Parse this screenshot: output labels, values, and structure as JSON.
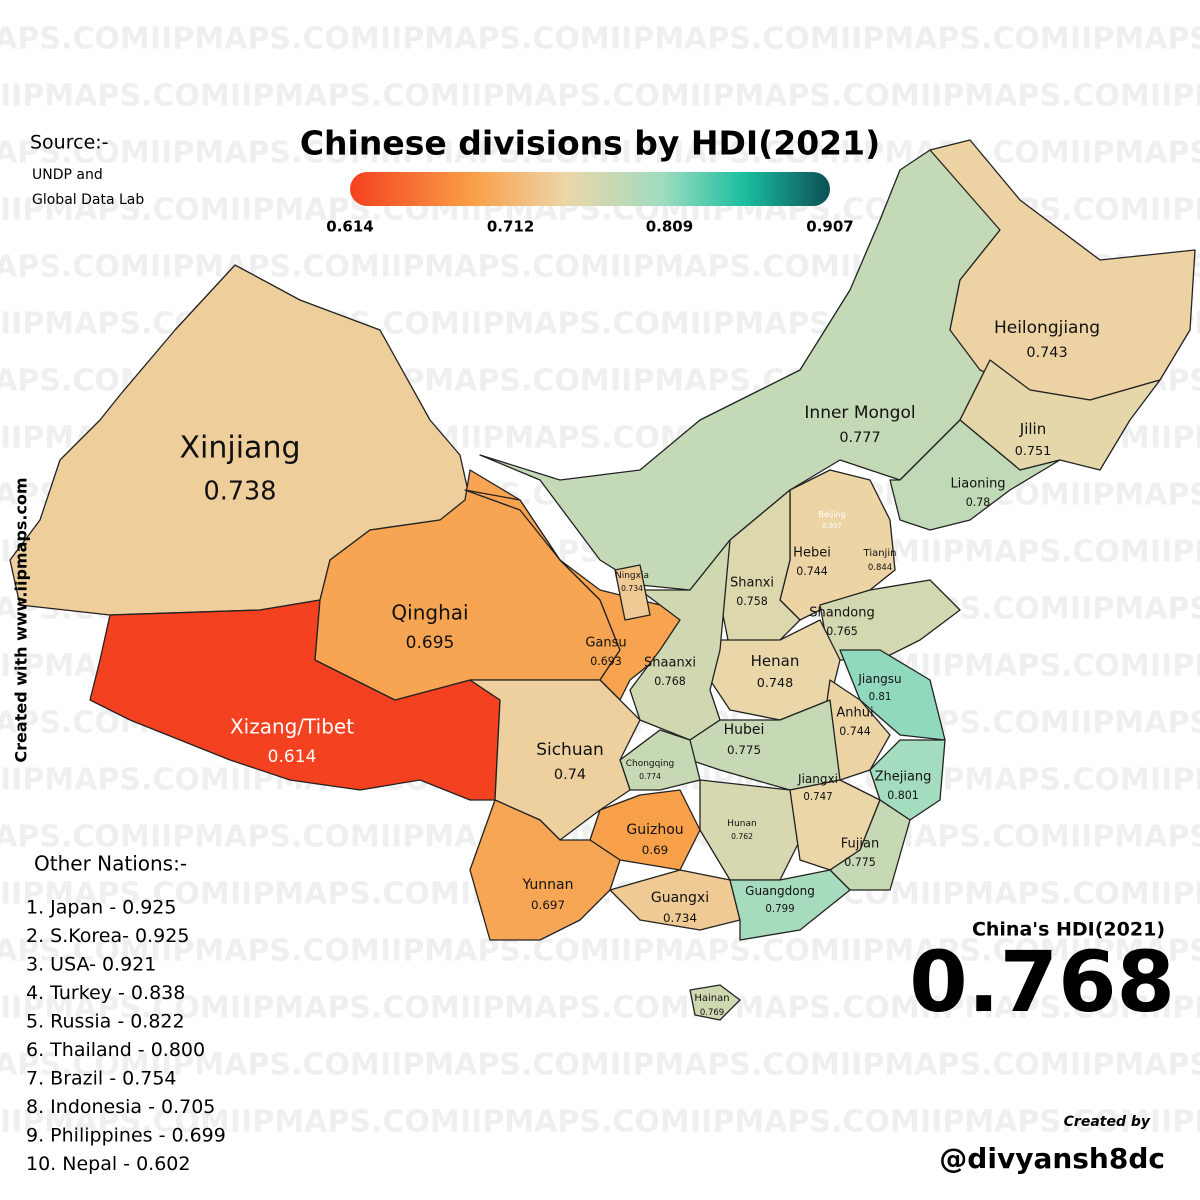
{
  "title": "Chinese divisions by HDI(2021)",
  "source": {
    "label": "Source:-",
    "lines": [
      "UNDP and",
      "Global Data Lab"
    ]
  },
  "watermark": "IIPMAPS.COM",
  "side_credit": "Created with www.iipmaps.com",
  "legend": {
    "ticks": [
      0.614,
      0.712,
      0.809,
      0.907
    ]
  },
  "regions": [
    {
      "name": "Xinjiang",
      "value": 0.738
    },
    {
      "name": "Xizang/Tibet",
      "value": 0.614
    },
    {
      "name": "Qinghai",
      "value": 0.695
    },
    {
      "name": "Gansu",
      "value": 0.693
    },
    {
      "name": "Inner Mongol",
      "value": 0.777
    },
    {
      "name": "Heilongjiang",
      "value": 0.743
    },
    {
      "name": "Jilin",
      "value": 0.751
    },
    {
      "name": "Liaoning",
      "value": 0.78
    },
    {
      "name": "Beijing",
      "value": 0.907
    },
    {
      "name": "Tianjin",
      "value": 0.844
    },
    {
      "name": "Hebei",
      "value": 0.744
    },
    {
      "name": "Shanxi",
      "value": 0.758
    },
    {
      "name": "Shandong",
      "value": 0.765
    },
    {
      "name": "Henan",
      "value": 0.748
    },
    {
      "name": "Shaanxi",
      "value": 0.768
    },
    {
      "name": "Ningxia",
      "value": 0.734
    },
    {
      "name": "Jiangsu",
      "value": 0.81
    },
    {
      "name": "Anhui",
      "value": 0.744
    },
    {
      "name": "Zhejiang",
      "value": 0.801
    },
    {
      "name": "Hubei",
      "value": 0.775
    },
    {
      "name": "Chongqing",
      "value": 0.774
    },
    {
      "name": "Sichuan",
      "value": 0.74
    },
    {
      "name": "Guizhou",
      "value": 0.69
    },
    {
      "name": "Yunnan",
      "value": 0.697
    },
    {
      "name": "Hunan",
      "value": 0.762
    },
    {
      "name": "Jiangxi",
      "value": 0.747
    },
    {
      "name": "Fujian",
      "value": 0.775
    },
    {
      "name": "Guangxi",
      "value": 0.734
    },
    {
      "name": "Guangdong",
      "value": 0.799
    },
    {
      "name": "Hainan",
      "value": 0.769
    }
  ],
  "other_nations": {
    "title": "Other Nations:-",
    "items": [
      "1. Japan - 0.925",
      "2. S.Korea- 0.925",
      "3. USA- 0.921",
      "4. Turkey - 0.838",
      "5. Russia - 0.822",
      "6. Thailand - 0.800",
      "7. Brazil - 0.754",
      "8. Indonesia - 0.705",
      "9. Philippines - 0.699",
      "10. Nepal - 0.602"
    ]
  },
  "national": {
    "label": "China's HDI(2021)",
    "value": "0.768"
  },
  "credit": {
    "label": "Created by",
    "handle": "@divyansh8dc"
  }
}
